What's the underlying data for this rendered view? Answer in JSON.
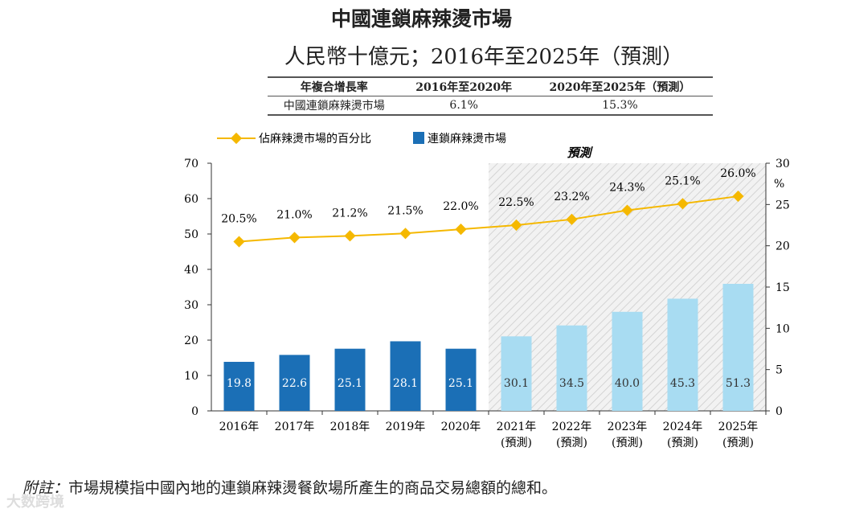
{
  "header": {
    "title": "中國連鎖麻辣燙市場",
    "subtitle": "人民幣十億元；2016年至2025年（預測）"
  },
  "cagr_table": {
    "headers": [
      "年複合增長率",
      "2016年至2020年",
      "2020年至2025年（預測）"
    ],
    "row": [
      "中國連鎖麻辣燙市場",
      "6.1%",
      "15.3%"
    ]
  },
  "footnote": {
    "label": "附註：",
    "text": "市場規模指中國內地的連鎖麻辣燙餐飲場所產生的商品交易總額的總和。"
  },
  "watermark": "大数跨境",
  "chart_data": {
    "type": "bar+line",
    "categories": [
      "2016年",
      "2017年",
      "2018年",
      "2019年",
      "2020年",
      "2021年",
      "2022年",
      "2023年",
      "2024年",
      "2025年"
    ],
    "category_sublabels": [
      "",
      "",
      "",
      "",
      "",
      "(預測)",
      "(預測)",
      "(預測)",
      "(預測)",
      "(預測)"
    ],
    "forecast_label": "預測",
    "forecast_from_index": 5,
    "series": [
      {
        "name": "連鎖麻辣燙市場",
        "type": "bar",
        "axis": "left",
        "values": [
          19.8,
          22.6,
          25.1,
          28.1,
          25.1,
          30.1,
          34.5,
          40.0,
          45.3,
          51.3
        ],
        "labels": [
          "19.8",
          "22.6",
          "25.1",
          "28.1",
          "25.1",
          "30.1",
          "34.5",
          "40.0",
          "45.3",
          "51.3"
        ],
        "color": "#1b6fb6",
        "forecast_color": "#a8dcf2"
      },
      {
        "name": "佔麻辣燙市場的百分比",
        "type": "line",
        "axis": "right",
        "values": [
          20.5,
          21.0,
          21.2,
          21.5,
          22.0,
          22.5,
          23.2,
          24.3,
          25.1,
          26.0
        ],
        "labels": [
          "20.5%",
          "21.0%",
          "21.2%",
          "21.5%",
          "22.0%",
          "22.5%",
          "23.2%",
          "24.3%",
          "25.1%",
          "26.0%"
        ],
        "color": "#f5b800"
      }
    ],
    "left_axis": {
      "ylim": [
        0,
        70
      ],
      "ticks": [
        "0",
        "10",
        "20",
        "30",
        "40",
        "50",
        "60",
        "70"
      ]
    },
    "right_axis": {
      "ylim": [
        0,
        30
      ],
      "ticks": [
        "0",
        "5",
        "10",
        "15",
        "20",
        "25",
        "30"
      ],
      "unit": "%"
    },
    "legend": "top-left"
  }
}
